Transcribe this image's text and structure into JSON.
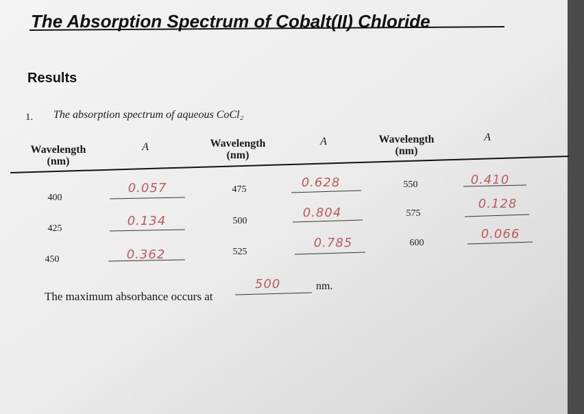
{
  "title": "The Absorption Spectrum of Cobalt(II) Chloride",
  "section": "Results",
  "question": {
    "number": "1.",
    "text": "The absorption spectrum of aqueous CoCl₂"
  },
  "table": {
    "headers": [
      [
        "Wavelength",
        "(nm)"
      ],
      [
        "A"
      ],
      [
        "Wavelength",
        "(nm)"
      ],
      [
        "A"
      ],
      [
        "Wavelength",
        "(nm)"
      ],
      [
        "A"
      ]
    ],
    "rows": [
      [
        "400",
        "0.057",
        "475",
        "0.628",
        "550",
        "0.410"
      ],
      [
        "425",
        "0.134",
        "500",
        "0.804",
        "575",
        "0.128"
      ],
      [
        "450",
        "0.362",
        "525",
        "0.785",
        "600",
        "0.066"
      ]
    ]
  },
  "answer": {
    "prefix": "The maximum absorbance occurs at",
    "value": "500",
    "unit": "nm."
  }
}
